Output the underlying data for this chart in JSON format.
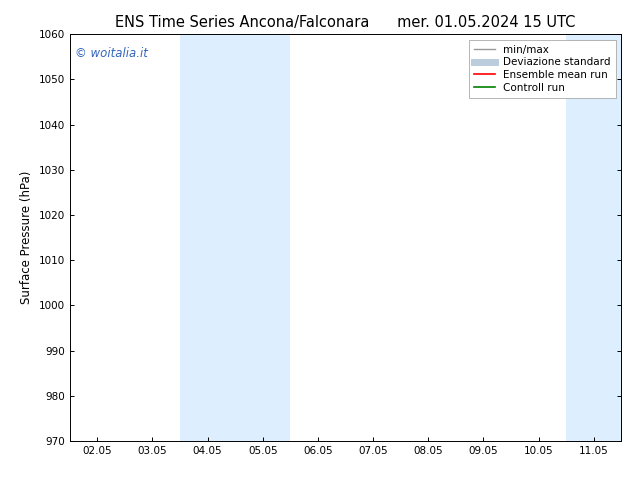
{
  "title_left": "ENS Time Series Ancona/Falconara",
  "title_right": "mer. 01.05.2024 15 UTC",
  "ylabel": "Surface Pressure (hPa)",
  "ylim": [
    970,
    1060
  ],
  "yticks": [
    970,
    980,
    990,
    1000,
    1010,
    1020,
    1030,
    1040,
    1050,
    1060
  ],
  "xtick_labels": [
    "02.05",
    "03.05",
    "04.05",
    "05.05",
    "06.05",
    "07.05",
    "08.05",
    "09.05",
    "10.05",
    "11.05"
  ],
  "xtick_positions": [
    0,
    1,
    2,
    3,
    4,
    5,
    6,
    7,
    8,
    9
  ],
  "xlim": [
    -0.5,
    9.5
  ],
  "shaded_bands": [
    {
      "x_start": 1.5,
      "x_end": 2.5,
      "color": "#ddeeff"
    },
    {
      "x_start": 2.5,
      "x_end": 3.5,
      "color": "#ddeeff"
    },
    {
      "x_start": 8.5,
      "x_end": 9.5,
      "color": "#ddeeff"
    }
  ],
  "watermark_text": "© woitalia.it",
  "watermark_color": "#3366bb",
  "legend_entries": [
    {
      "label": "min/max",
      "color": "#999999",
      "linestyle": "-",
      "lw": 1.0
    },
    {
      "label": "Deviazione standard",
      "color": "#bbccdd",
      "linestyle": "-",
      "lw": 5.0
    },
    {
      "label": "Ensemble mean run",
      "color": "red",
      "linestyle": "-",
      "lw": 1.2
    },
    {
      "label": "Controll run",
      "color": "green",
      "linestyle": "-",
      "lw": 1.2
    }
  ],
  "bg_color": "#ffffff",
  "tick_fontsize": 7.5,
  "ylabel_fontsize": 8.5,
  "title_fontsize": 10.5,
  "legend_fontsize": 7.5
}
